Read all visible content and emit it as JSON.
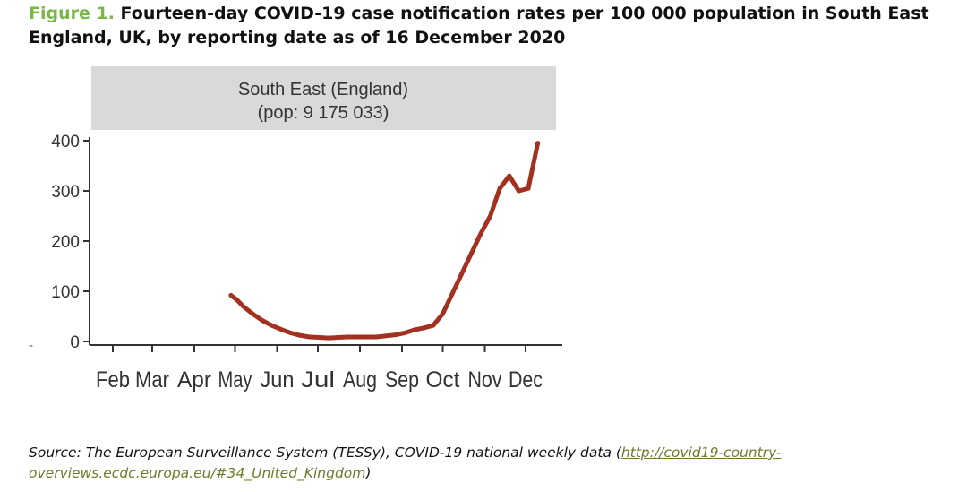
{
  "caption": {
    "label": "Figure 1.",
    "line1": " Fourteen-day COVID-19 case notification rates per 100 000 population in South East",
    "line2": "England, UK, by reporting date as of 16 December 2020"
  },
  "panel": {
    "title_line1": "South East (England)",
    "title_line2": "(pop: 9 175 033)"
  },
  "chart_data": {
    "type": "line",
    "title": "South East (England)",
    "subtitle": "(pop: 9 175 033)",
    "xlabel": "",
    "ylabel": "",
    "x_tick_labels": [
      "Feb",
      "Mar",
      "Apr",
      "May",
      "Jun",
      "Jul",
      "Aug",
      "Sep",
      "Oct",
      "Nov",
      "Dec"
    ],
    "xlim": [
      "2020-01-31",
      "2020-12-31"
    ],
    "ylim": [
      0,
      400
    ],
    "y_ticks": [
      0,
      100,
      200,
      300,
      400
    ],
    "grid": false,
    "legend": "none",
    "line_color": "#a33120",
    "strip_color": "#d9d9d9",
    "series": [
      {
        "points": [
          {
            "x": "2020-04-28",
            "y": 92
          },
          {
            "x": "2020-05-02",
            "y": 84
          },
          {
            "x": "2020-05-07",
            "y": 70
          },
          {
            "x": "2020-05-14",
            "y": 55
          },
          {
            "x": "2020-05-21",
            "y": 42
          },
          {
            "x": "2020-05-28",
            "y": 32
          },
          {
            "x": "2020-06-04",
            "y": 24
          },
          {
            "x": "2020-06-11",
            "y": 17
          },
          {
            "x": "2020-06-18",
            "y": 12
          },
          {
            "x": "2020-06-25",
            "y": 9
          },
          {
            "x": "2020-07-02",
            "y": 8
          },
          {
            "x": "2020-07-09",
            "y": 7
          },
          {
            "x": "2020-07-16",
            "y": 8
          },
          {
            "x": "2020-07-23",
            "y": 9
          },
          {
            "x": "2020-07-30",
            "y": 9
          },
          {
            "x": "2020-08-06",
            "y": 9
          },
          {
            "x": "2020-08-13",
            "y": 9
          },
          {
            "x": "2020-08-20",
            "y": 11
          },
          {
            "x": "2020-08-27",
            "y": 13
          },
          {
            "x": "2020-09-03",
            "y": 17
          },
          {
            "x": "2020-09-10",
            "y": 23
          },
          {
            "x": "2020-09-17",
            "y": 27
          },
          {
            "x": "2020-09-24",
            "y": 32
          },
          {
            "x": "2020-10-01",
            "y": 55
          },
          {
            "x": "2020-10-08",
            "y": 95
          },
          {
            "x": "2020-10-15",
            "y": 135
          },
          {
            "x": "2020-10-22",
            "y": 175
          },
          {
            "x": "2020-10-29",
            "y": 215
          },
          {
            "x": "2020-11-05",
            "y": 250
          },
          {
            "x": "2020-11-12",
            "y": 305
          },
          {
            "x": "2020-11-19",
            "y": 330
          },
          {
            "x": "2020-11-26",
            "y": 300
          },
          {
            "x": "2020-12-03",
            "y": 305
          },
          {
            "x": "2020-12-10",
            "y": 395
          }
        ]
      }
    ]
  },
  "source": {
    "line1_text": "Source: The European Surveillance System (TESSy), COVID-19 national weekly data (",
    "line1_link": "http://covid19-country-",
    "line2_link": "overviews.ecdc.europa.eu/#34_United_Kingdom",
    "line2_close": ")"
  },
  "stray_mark": "-"
}
